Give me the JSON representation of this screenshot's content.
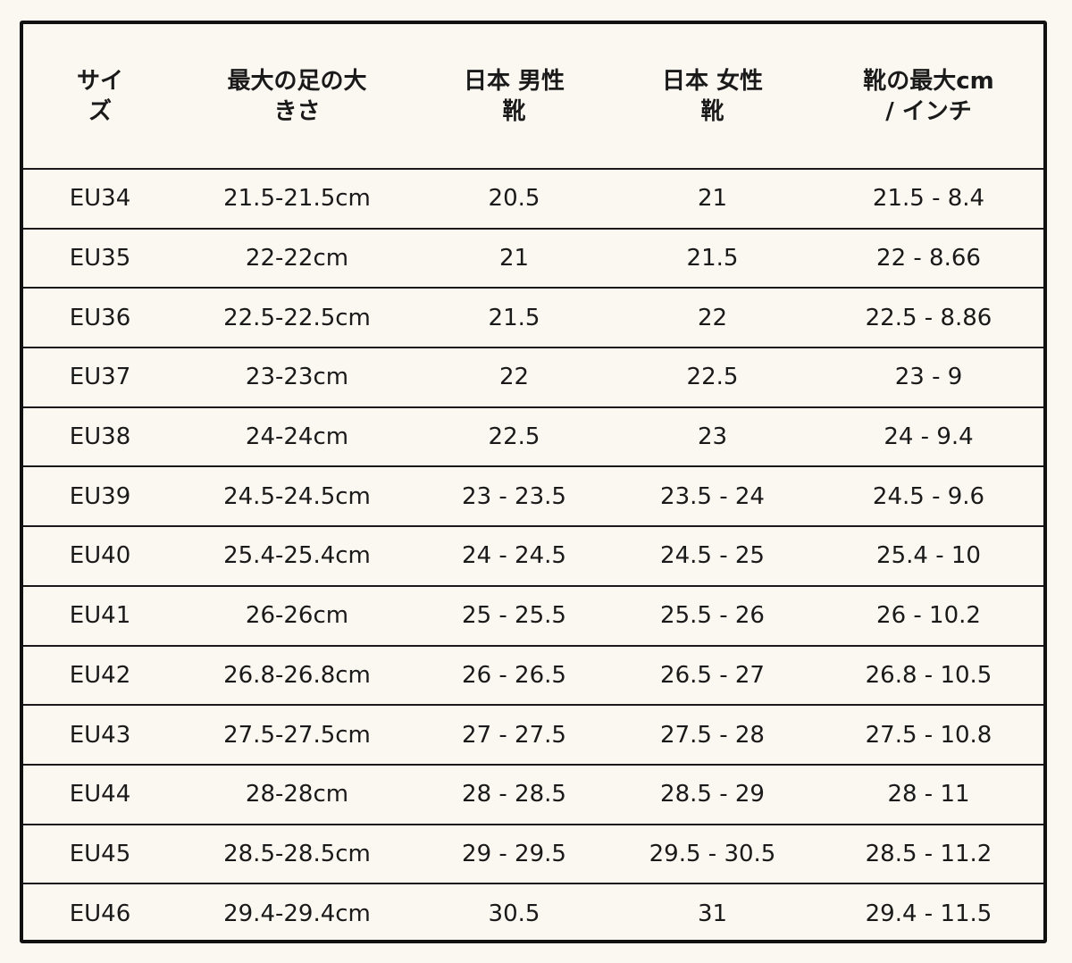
{
  "headers": [
    [
      "サイ",
      "ズ"
    ],
    [
      "最大の足の大",
      "きさ"
    ],
    [
      "日本 男性",
      "靴"
    ],
    [
      "日本 女性",
      "靴"
    ],
    [
      "靴の最大cm",
      "/ インチ"
    ]
  ],
  "rows": [
    [
      "EU34",
      "21.5-21.5cm",
      "20.5",
      "21",
      "21.5 - 8.4"
    ],
    [
      "EU35",
      "22-22cm",
      "21",
      "21.5",
      "22 - 8.66"
    ],
    [
      "EU36",
      "22.5-22.5cm",
      "21.5",
      "22",
      "22.5 - 8.86"
    ],
    [
      "EU37",
      "23-23cm",
      "22",
      "22.5",
      "23 - 9"
    ],
    [
      "EU38",
      "24-24cm",
      "22.5",
      "23",
      "24 - 9.4"
    ],
    [
      "EU39",
      "24.5-24.5cm",
      "23 - 23.5",
      "23.5 - 24",
      "24.5 - 9.6"
    ],
    [
      "EU40",
      "25.4-25.4cm",
      "24 - 24.5",
      "24.5 - 25",
      "25.4 - 10"
    ],
    [
      "EU41",
      "26-26cm",
      "25 - 25.5",
      "25.5 - 26",
      "26 - 10.2"
    ],
    [
      "EU42",
      "26.8-26.8cm",
      "26 - 26.5",
      "26.5 - 27",
      "26.8 - 10.5"
    ],
    [
      "EU43",
      "27.5-27.5cm",
      "27 - 27.5",
      "27.5 - 28",
      "27.5 - 10.8"
    ],
    [
      "EU44",
      "28-28cm",
      "28 - 28.5",
      "28.5 - 29",
      "28 - 11"
    ],
    [
      "EU45",
      "28.5-28.5cm",
      "29 - 29.5",
      "29.5 - 30.5",
      "28.5 - 11.2"
    ],
    [
      "EU46",
      "29.4-29.4cm",
      "30.5",
      "31",
      "29.4 - 11.5"
    ]
  ],
  "colors": {
    "background": "#fbf8f1",
    "border": "#111111",
    "text": "#1a1a1a"
  }
}
